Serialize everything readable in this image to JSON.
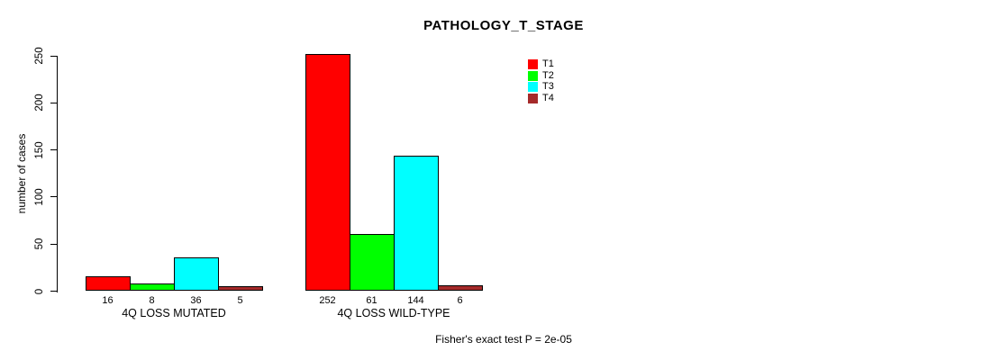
{
  "chart_data": {
    "type": "bar",
    "title": "PATHOLOGY_T_STAGE",
    "xlabel": "",
    "ylabel": "number of cases",
    "ylim": [
      0,
      250
    ],
    "yticks": [
      0,
      50,
      100,
      150,
      200,
      250
    ],
    "grid": false,
    "legend_position": "top-right",
    "series": [
      {
        "name": "T1",
        "color": "#FF0000"
      },
      {
        "name": "T2",
        "color": "#00FF00"
      },
      {
        "name": "T3",
        "color": "#00FFFF"
      },
      {
        "name": "T4",
        "color": "#A52A2A"
      }
    ],
    "categories": [
      "4Q LOSS MUTATED",
      "4Q LOSS WILD-TYPE"
    ],
    "groups": [
      {
        "label": "4Q LOSS MUTATED",
        "values": [
          16,
          8,
          36,
          5
        ]
      },
      {
        "label": "4Q LOSS WILD-TYPE",
        "values": [
          252,
          61,
          144,
          6
        ]
      }
    ],
    "annotation": "Fisher's exact test P = 2e-05"
  }
}
